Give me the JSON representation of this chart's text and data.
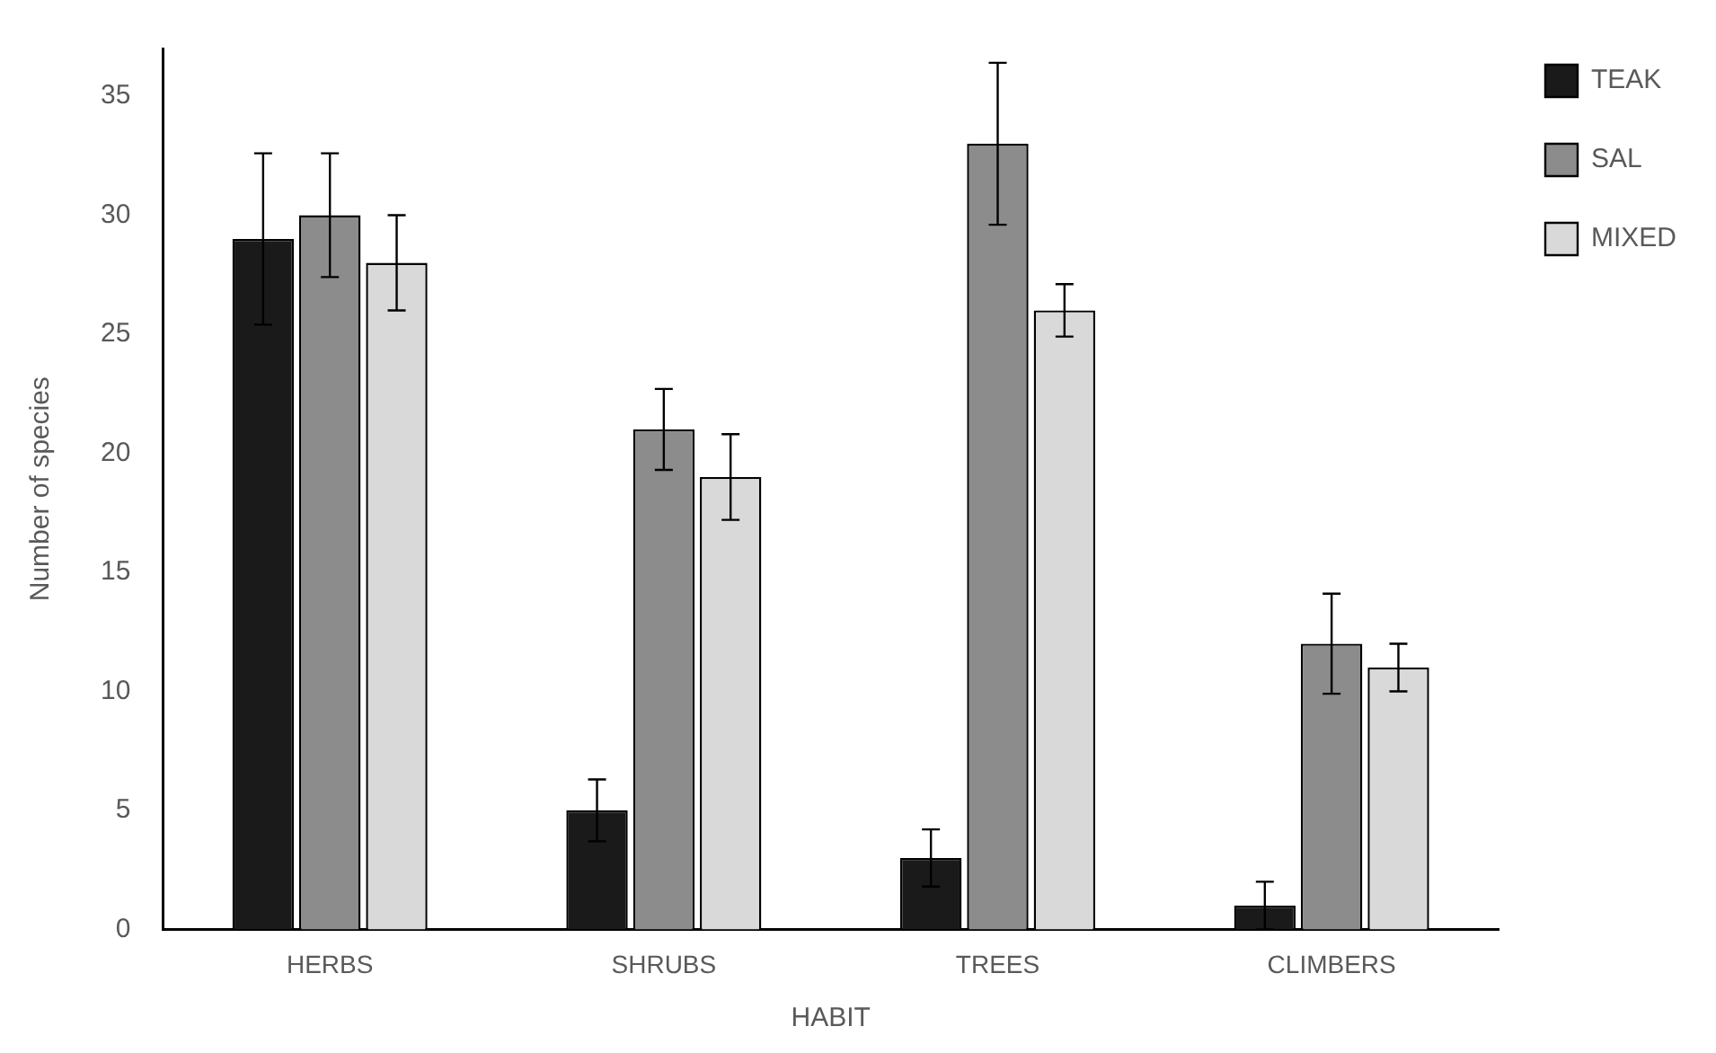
{
  "chart_data": {
    "type": "bar",
    "xlabel": "HABIT",
    "ylabel": "Number of species",
    "categories": [
      "HERBS",
      "SHRUBS",
      "TREES",
      "CLIMBERS"
    ],
    "series": [
      {
        "name": "TEAK",
        "color": "#1a1a1a",
        "values": [
          29,
          5,
          3,
          1
        ],
        "errors": [
          3.6,
          1.3,
          1.2,
          1
        ]
      },
      {
        "name": "SAL",
        "color": "#8c8c8c",
        "values": [
          30,
          21,
          33,
          12
        ],
        "errors": [
          2.6,
          1.7,
          3.4,
          2.1
        ]
      },
      {
        "name": "MIXED",
        "color": "#d9d9d9",
        "values": [
          28,
          19,
          26,
          11
        ],
        "errors": [
          2,
          1.8,
          1.1,
          1
        ]
      }
    ],
    "ylim": [
      0,
      37
    ],
    "yticks": [
      0,
      5,
      10,
      15,
      20,
      25,
      30,
      35
    ],
    "grid": false,
    "legend": "top right"
  }
}
